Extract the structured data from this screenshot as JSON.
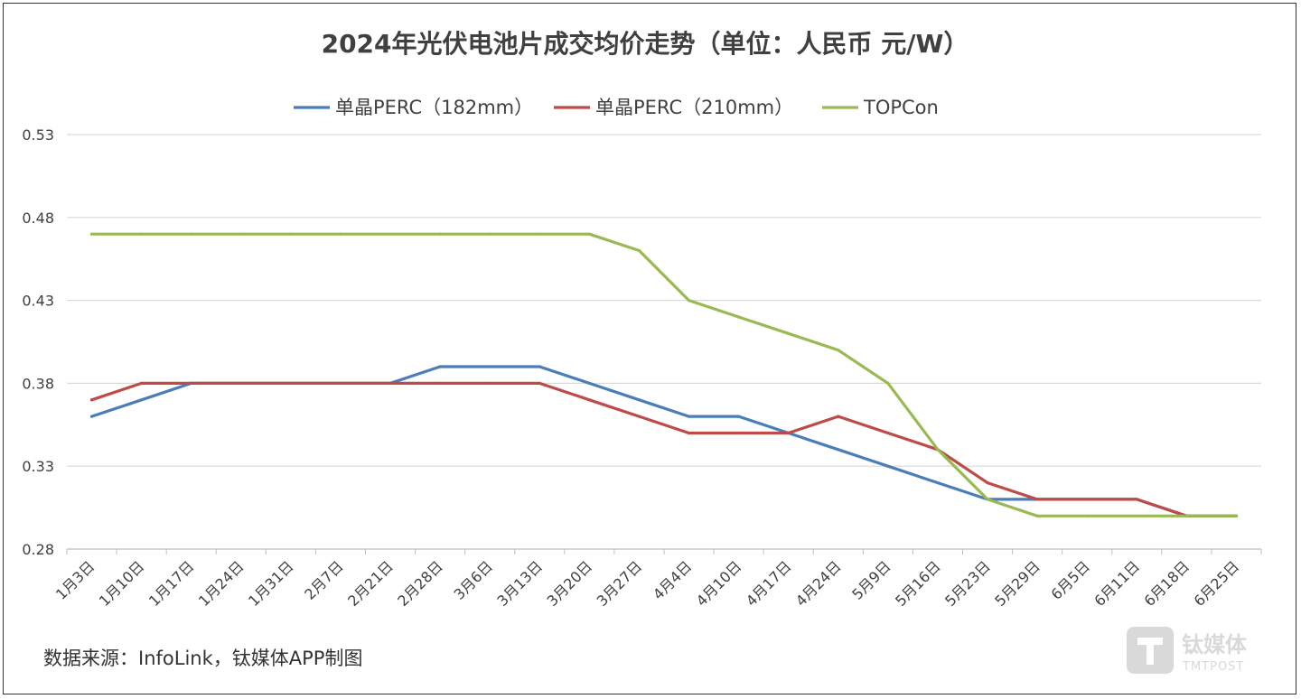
{
  "chart_data": {
    "type": "line",
    "title": "2024年光伏电池片成交均价走势（单位：人民币 元/W）",
    "xlabel": "",
    "ylabel": "",
    "ylim": [
      0.28,
      0.53
    ],
    "yticks": [
      0.28,
      0.33,
      0.38,
      0.43,
      0.48,
      0.53
    ],
    "ytick_labels": [
      "0.28",
      "0.33",
      "0.38",
      "0.43",
      "0.48",
      "0.53"
    ],
    "grid": true,
    "legend_position": "top-center",
    "categories": [
      "1月3日",
      "1月10日",
      "1月17日",
      "1月24日",
      "1月31日",
      "2月7日",
      "2月21日",
      "2月28日",
      "3月6日",
      "3月13日",
      "3月20日",
      "3月27日",
      "4月4日",
      "4月10日",
      "4月17日",
      "4月24日",
      "5月9日",
      "5月16日",
      "5月23日",
      "5月29日",
      "6月5日",
      "6月11日",
      "6月18日",
      "6月25日"
    ],
    "series": [
      {
        "name": "单晶PERC（182mm）",
        "color": "#4a7ebb",
        "values": [
          0.36,
          0.37,
          0.38,
          0.38,
          0.38,
          0.38,
          0.38,
          0.39,
          0.39,
          0.39,
          0.38,
          0.37,
          0.36,
          0.36,
          0.35,
          0.34,
          0.33,
          0.32,
          0.31,
          0.31,
          0.31,
          0.31,
          0.3,
          0.3
        ]
      },
      {
        "name": "单晶PERC（210mm）",
        "color": "#be4b48",
        "values": [
          0.37,
          0.38,
          0.38,
          0.38,
          0.38,
          0.38,
          0.38,
          0.38,
          0.38,
          0.38,
          0.37,
          0.36,
          0.35,
          0.35,
          0.35,
          0.36,
          0.35,
          0.34,
          0.32,
          0.31,
          0.31,
          0.31,
          0.3,
          0.3
        ]
      },
      {
        "name": "TOPCon",
        "color": "#98b954",
        "values": [
          0.47,
          0.47,
          0.47,
          0.47,
          0.47,
          0.47,
          0.47,
          0.47,
          0.47,
          0.47,
          0.47,
          0.46,
          0.43,
          0.42,
          0.41,
          0.4,
          0.38,
          0.34,
          0.31,
          0.3,
          0.3,
          0.3,
          0.3,
          0.3
        ]
      }
    ]
  },
  "source_note": "数据来源：InfoLink，钛媒体APP制图",
  "watermark": {
    "name": "钛媒体",
    "sub": "TMTPOST",
    "icon": "tmtpost-logo-icon"
  },
  "colors": {
    "grid": "#d9d9d9",
    "axis": "#bfbfbf",
    "text": "#404040"
  }
}
